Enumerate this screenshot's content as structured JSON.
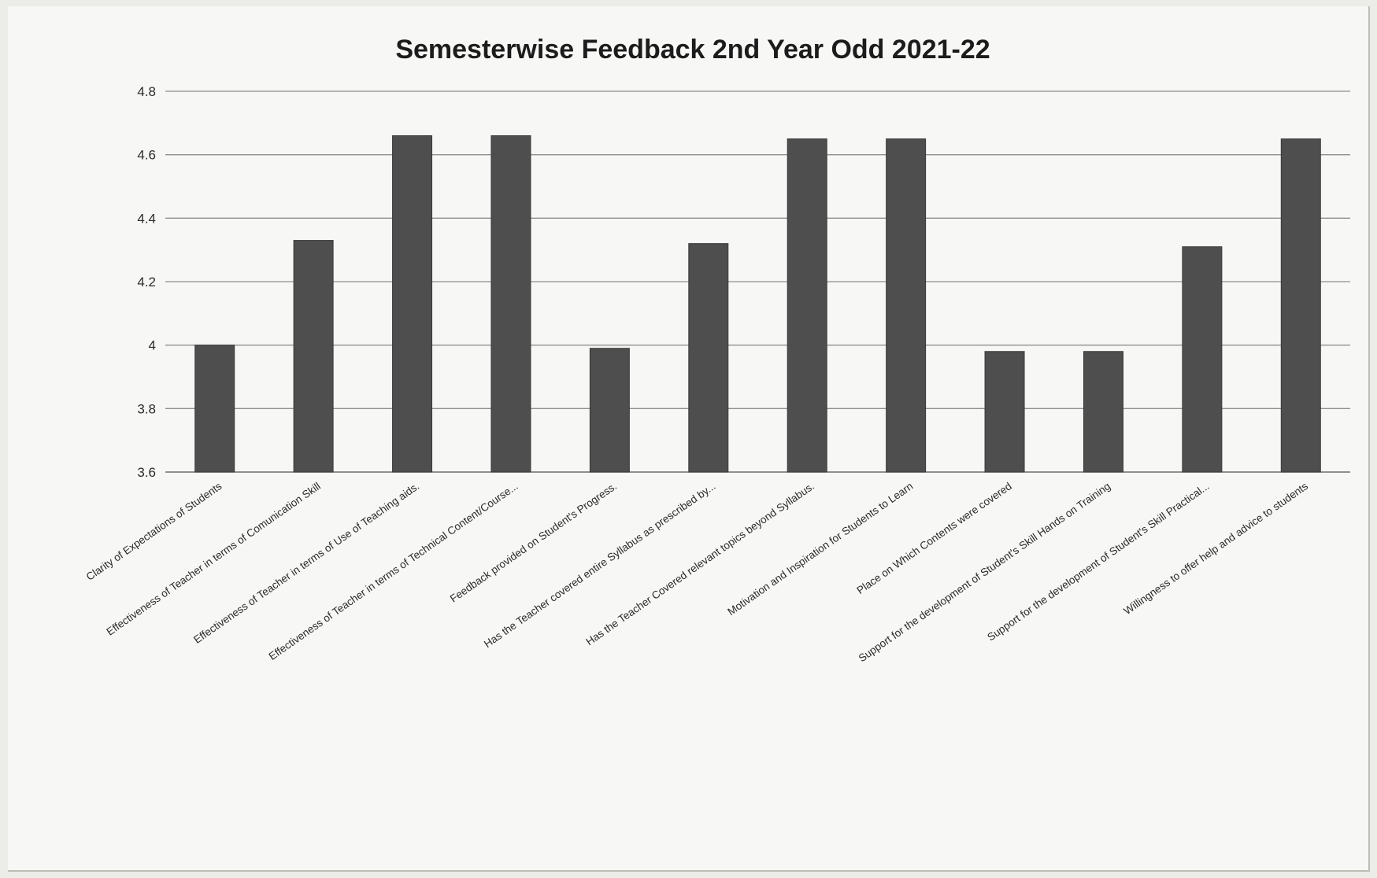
{
  "chart_data": {
    "type": "bar",
    "title": "Semesterwise Feedback 2nd Year Odd 2021-22",
    "xlabel": "",
    "ylabel": "",
    "ylim": [
      3.6,
      4.8
    ],
    "yticks": [
      "3.6",
      "3.8",
      "4",
      "4.2",
      "4.4",
      "4.6",
      "4.8"
    ],
    "grid": true,
    "colors": {
      "bar": "#4e4e4e",
      "grid": "#8e8e8e"
    },
    "categories": [
      "Clarity of Expectations of Students",
      "Effectiveness of Teacher in terms of Comunication Skill",
      "Effectiveness of Teacher in terms of Use of Teaching aids.",
      "Effectiveness of Teacher in terms of Technical Content/Course...",
      "Feedback provided on Student's Progress.",
      "Has the Teacher covered entire Syllabus as prescribed by...",
      "Has the Teacher Covered relevant topics beyond Syllabus.",
      "Motivation and Inspiration for Students to Learn",
      "Place on Which Contents were covered",
      "Support for the development of Student's Skill Hands on Training",
      "Support for the development of Student's Skill Practical...",
      "Willingness to offer help and advice to students"
    ],
    "values": [
      4.0,
      4.33,
      4.66,
      4.66,
      3.99,
      4.32,
      4.65,
      4.65,
      3.98,
      3.98,
      4.31,
      4.65
    ]
  }
}
